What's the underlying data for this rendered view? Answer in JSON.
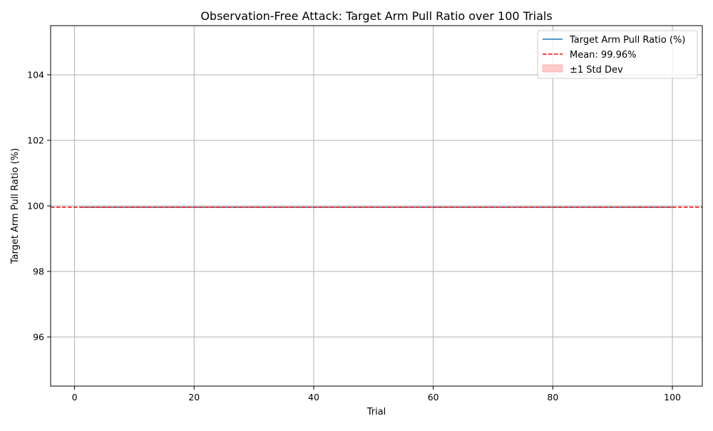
{
  "chart_data": {
    "type": "line",
    "title": "Observation-Free Attack: Target Arm Pull Ratio over 100 Trials",
    "xlabel": "Trial",
    "ylabel": "Target Arm Pull Ratio (%)",
    "xlim": [
      -4,
      105
    ],
    "ylim": [
      94.5,
      105.5
    ],
    "xticks": [
      0,
      20,
      40,
      60,
      80,
      100
    ],
    "yticks": [
      96,
      98,
      100,
      102,
      104
    ],
    "grid": true,
    "legend_position": "top-right",
    "series": [
      {
        "name": "Target Arm Pull Ratio (%)",
        "color": "#1f77b4",
        "style": "solid",
        "x_range": [
          1,
          100
        ],
        "value": 99.96
      }
    ],
    "mean_line": {
      "label": "Mean: 99.96%",
      "value": 99.96,
      "color": "#ff0000",
      "style": "dashed"
    },
    "std_band": {
      "label": "±1 Std Dev",
      "color": "#ffb3b3"
    }
  }
}
